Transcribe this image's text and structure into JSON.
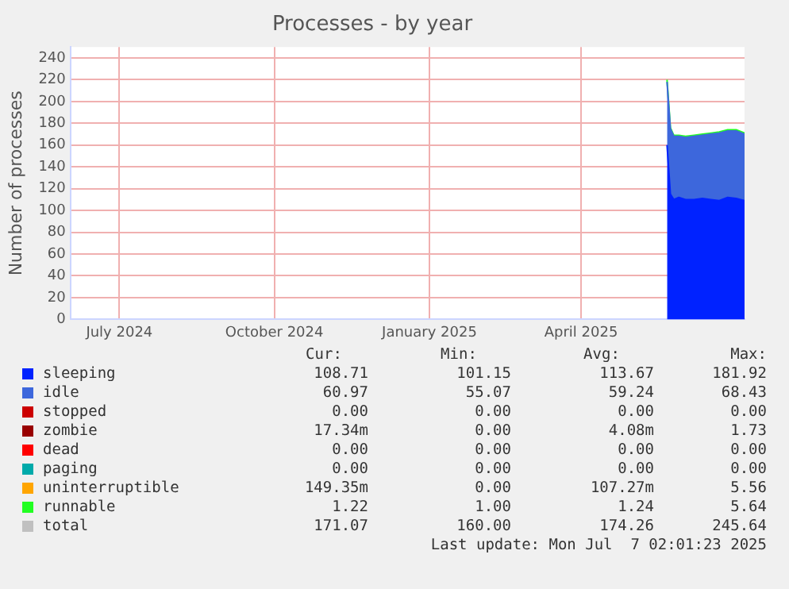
{
  "chart_data": {
    "type": "area",
    "title": "Processes - by year",
    "ylabel": "Number of processes",
    "stacked": true,
    "grid": true,
    "legend": "bottom",
    "x": [
      "2025-05-22",
      "2025-05-24",
      "2025-05-26",
      "2025-05-29",
      "2025-06-02",
      "2025-06-07",
      "2025-06-12",
      "2025-06-17",
      "2025-06-22",
      "2025-06-27",
      "2025-07-02",
      "2025-07-07"
    ],
    "xlim": [
      "2024-06-02",
      "2025-07-07"
    ],
    "xticks": [
      {
        "value": "2024-07-01",
        "label": "July 2024"
      },
      {
        "value": "2024-10-01",
        "label": "October 2024"
      },
      {
        "value": "2025-01-01",
        "label": "January 2025"
      },
      {
        "value": "2025-04-01",
        "label": "April 2025"
      }
    ],
    "ylim": [
      0,
      250
    ],
    "yticks": [
      0,
      20,
      40,
      60,
      80,
      100,
      120,
      140,
      160,
      180,
      200,
      220,
      240
    ],
    "series": [
      {
        "name": "sleeping",
        "color": "#0022ff",
        "values": [
          160,
          115,
          110,
          112,
          110,
          110,
          111,
          110,
          109,
          112,
          111,
          109
        ]
      },
      {
        "name": "idle",
        "color": "#3d67dc",
        "values": [
          58,
          60,
          58,
          56,
          57,
          58,
          58,
          60,
          62,
          61,
          62,
          61
        ]
      },
      {
        "name": "stopped",
        "color": "#cc0000",
        "values": [
          null,
          null,
          null,
          null,
          null,
          null,
          null,
          null,
          null,
          null,
          null,
          null
        ]
      },
      {
        "name": "zombie",
        "color": "#990000",
        "values": [
          null,
          null,
          null,
          null,
          null,
          null,
          null,
          null,
          null,
          null,
          null,
          null
        ]
      },
      {
        "name": "dead",
        "color": "#ff0000",
        "values": [
          null,
          null,
          null,
          null,
          null,
          null,
          null,
          null,
          null,
          null,
          null,
          null
        ]
      },
      {
        "name": "paging",
        "color": "#00aaaa",
        "values": [
          null,
          null,
          null,
          null,
          null,
          null,
          null,
          null,
          null,
          null,
          null,
          null
        ]
      },
      {
        "name": "uninterruptible",
        "color": "#ffa500",
        "values": [
          null,
          null,
          null,
          null,
          null,
          null,
          null,
          null,
          null,
          null,
          null,
          null
        ]
      },
      {
        "name": "runnable",
        "color": "#22ff22",
        "values": [
          2,
          1,
          1,
          1,
          1,
          1,
          1,
          1,
          1,
          1,
          1,
          1
        ]
      },
      {
        "name": "total",
        "color": "#c0c0c0",
        "values": [
          null,
          null,
          null,
          null,
          null,
          null,
          null,
          null,
          null,
          null,
          null,
          null
        ]
      }
    ],
    "annotations": [
      "Cur: Min: Avg: Max:",
      "108.71 101.15 113.67 181.92",
      "60.97 55.07 59.24 68.43",
      "0.00 0.00 0.00 0.00",
      "17.34m 0.00 4.08m 1.73",
      "0.00 0.00 0.00 0.00",
      "0.00 0.00 0.00 0.00",
      "149.35m 0.00 107.27m 5.56",
      "1.22 1.00 1.24 5.64",
      "171.07 160.00 174.26 245.64",
      "Last update: Mon Jul  7 02:01:23 2025"
    ]
  }
}
